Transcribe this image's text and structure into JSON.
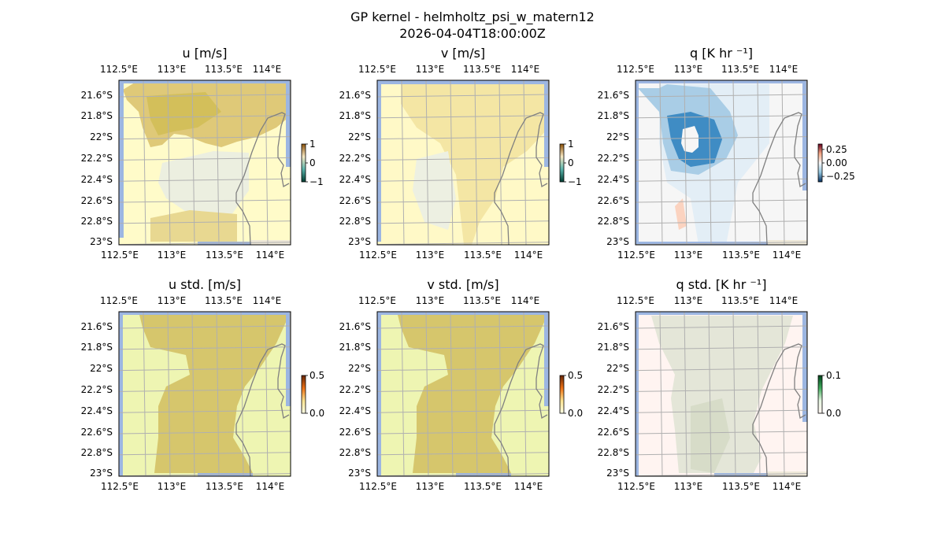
{
  "chart_data": {
    "type": "heatmap",
    "title": "GP kernel - helmholtz_psi_w_matern12",
    "subtitle": "2026-04-04T18:00:00Z",
    "lon_ticks": [
      "112.5°E",
      "113°E",
      "113.5°E",
      "114°E"
    ],
    "lat_ticks": [
      "21.6°S",
      "21.8°S",
      "22°S",
      "22.2°S",
      "22.4°S",
      "22.6°S",
      "22.8°S",
      "23°S"
    ],
    "grid": true,
    "panels": [
      {
        "title": "u [m/s]",
        "cbar_ticks": [
          "1",
          "0",
          "−1"
        ],
        "cbar_range": [
          -1,
          1
        ],
        "cmap": "BrBG-like"
      },
      {
        "title": "v [m/s]",
        "cbar_ticks": [
          "1",
          "0",
          "−1"
        ],
        "cbar_range": [
          -1,
          1
        ],
        "cmap": "BrBG-like"
      },
      {
        "title": "q [K hr ⁻¹]",
        "cbar_ticks": [
          "0.25",
          "0.00",
          "−0.25"
        ],
        "cbar_range": [
          -0.35,
          0.35
        ],
        "cmap": "RdBu_r"
      },
      {
        "title": "u std. [m/s]",
        "cbar_ticks": [
          "0.5",
          "0.0"
        ],
        "cbar_range": [
          0,
          0.5
        ],
        "cmap": "YlOrBr-like"
      },
      {
        "title": "v std. [m/s]",
        "cbar_ticks": [
          "0.5",
          "0.0"
        ],
        "cbar_range": [
          0,
          0.5
        ],
        "cmap": "YlOrBr-like"
      },
      {
        "title": "q std. [K hr ⁻¹]",
        "cbar_ticks": [
          "0.1",
          "0.0"
        ],
        "cbar_range": [
          0,
          0.1
        ],
        "cmap": "pink-green"
      }
    ]
  }
}
